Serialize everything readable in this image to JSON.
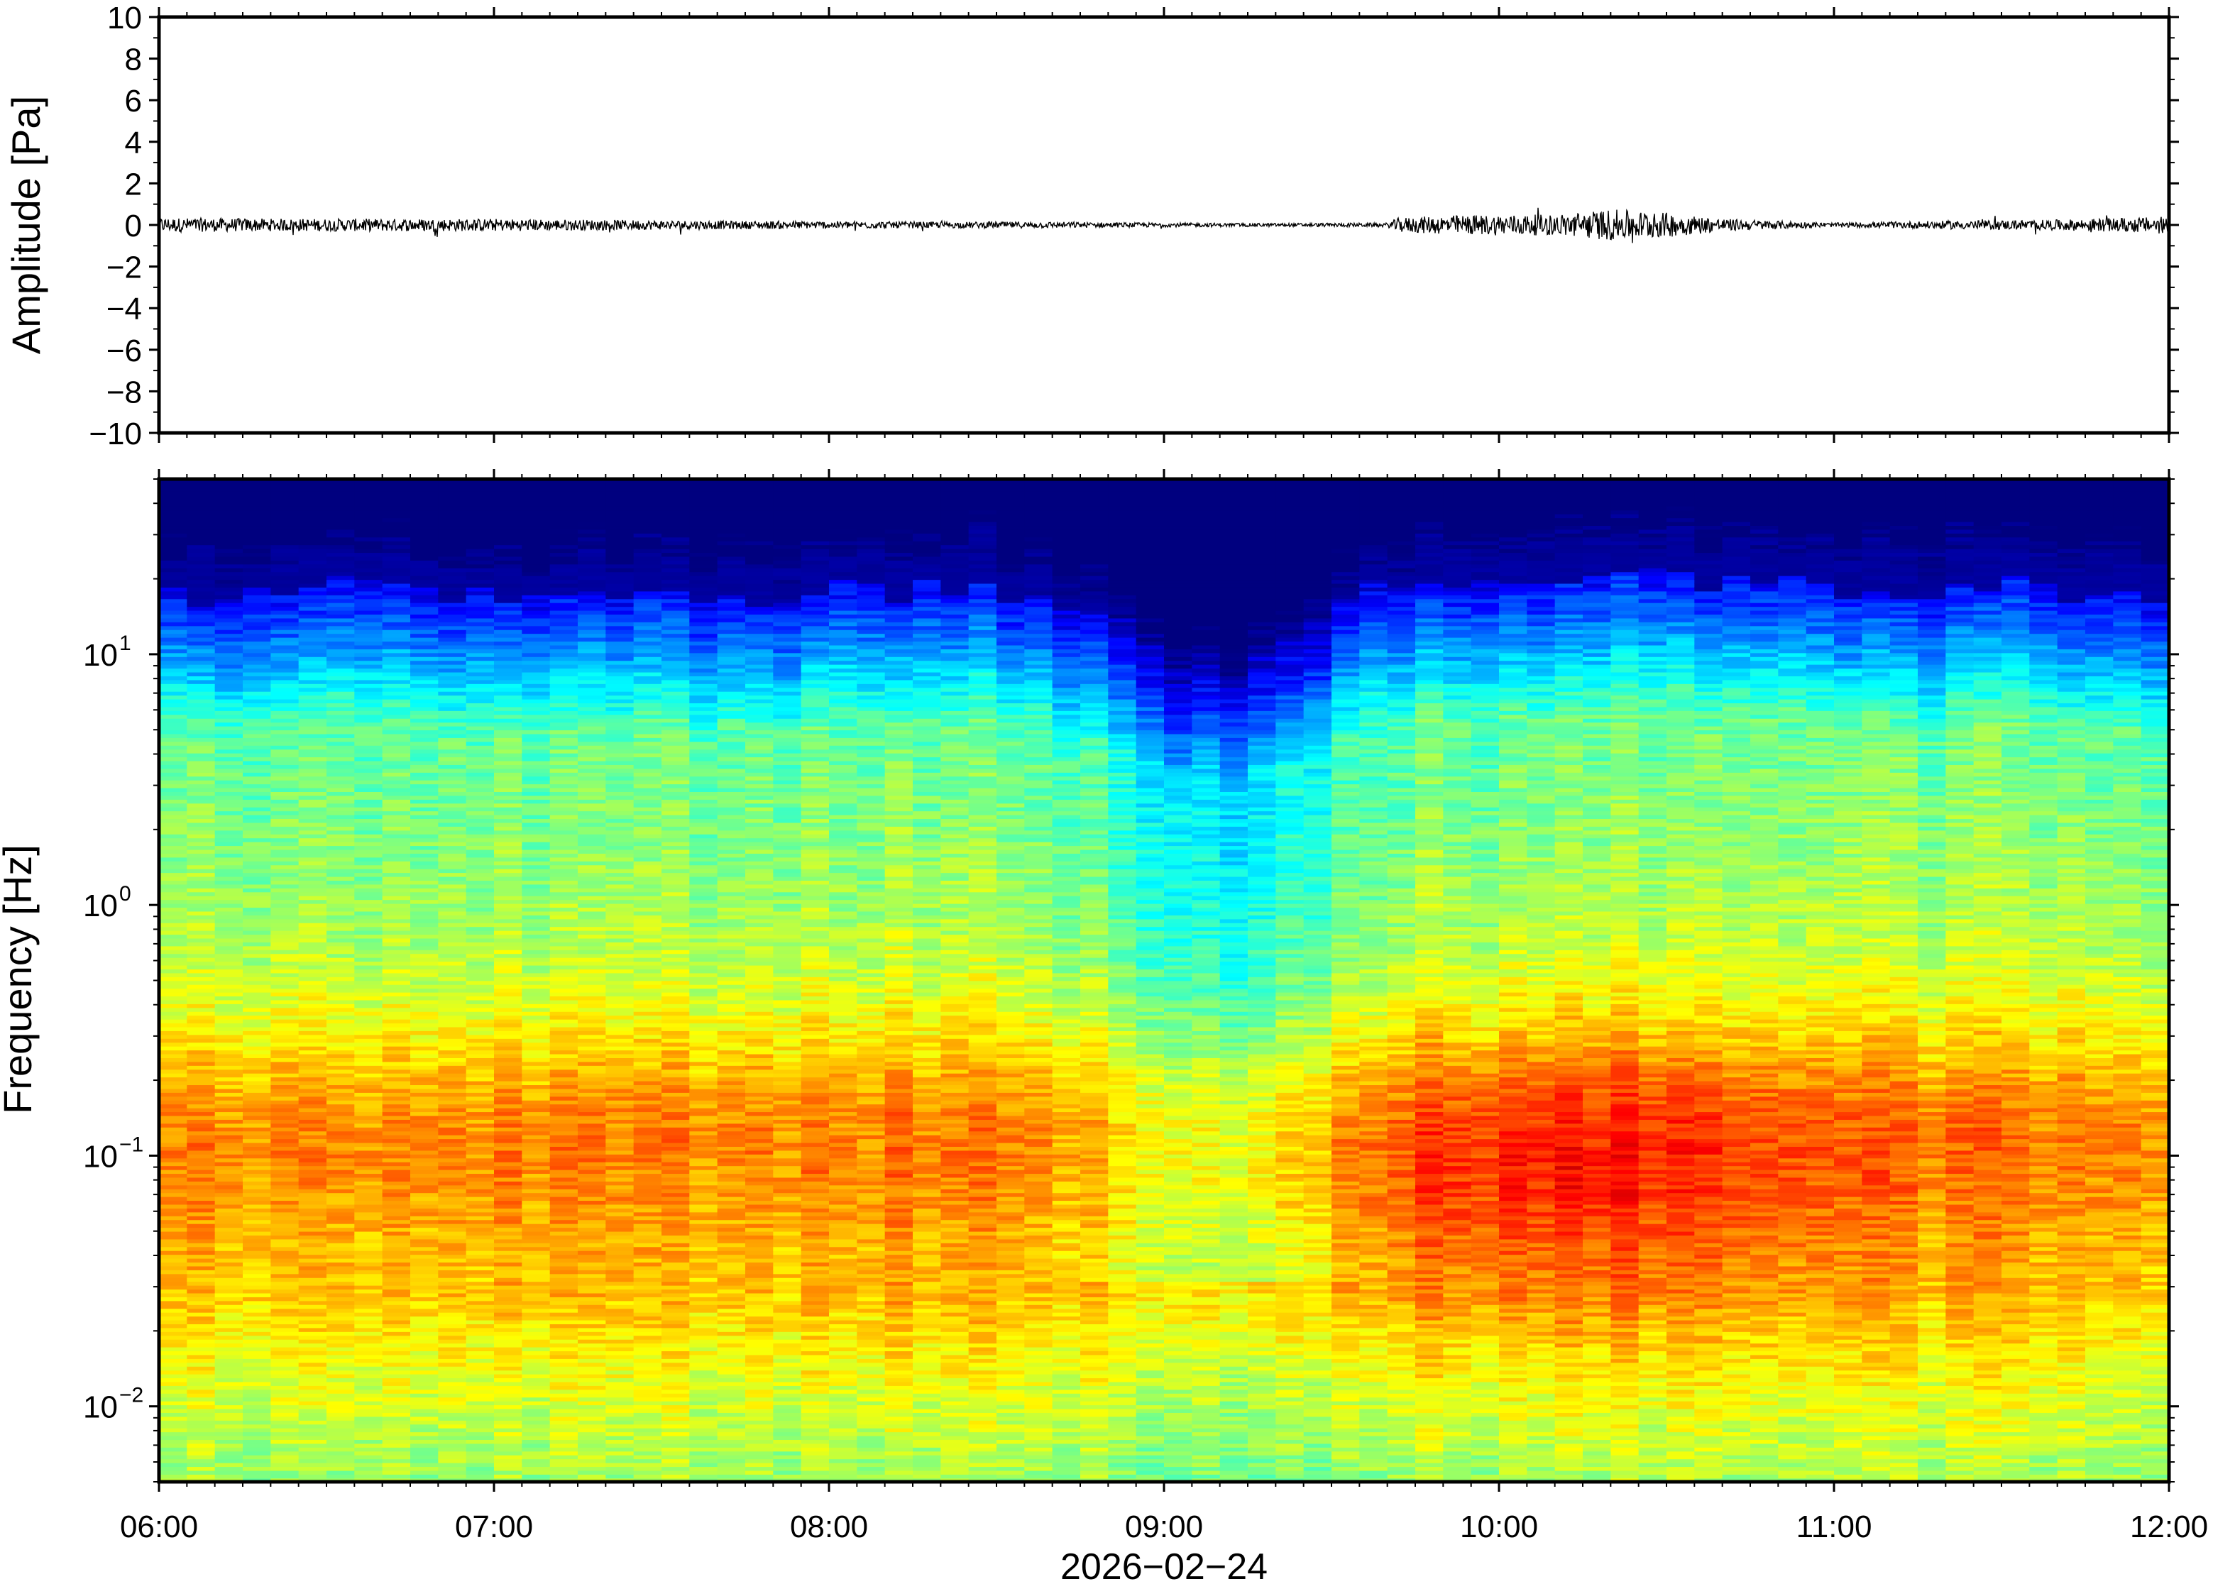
{
  "chart_data": [
    {
      "type": "line",
      "ylabel": "Amplitude [Pa]",
      "ylim": [
        -10,
        10
      ],
      "y_ticks": [
        "10",
        "8",
        "6",
        "4",
        "2",
        "0",
        "−2",
        "−4",
        "−6",
        "−8",
        "−10"
      ],
      "y_tick_values": [
        10,
        8,
        6,
        4,
        2,
        0,
        -2,
        -4,
        -6,
        -8,
        -10
      ],
      "x_range": [
        "06:00",
        "12:00"
      ],
      "grid": false,
      "series": [
        {
          "color": "#000000",
          "envelope": {
            "x_minutes": [
              0,
              20,
              40,
              60,
              80,
              100,
              120,
              140,
              160,
              180,
              200,
              220,
              222,
              230,
              240,
              250,
              260,
              270,
              280,
              290,
              300,
              320,
              340,
              360
            ],
            "amplitude": [
              0.35,
              0.3,
              0.3,
              0.3,
              0.25,
              0.2,
              0.18,
              0.15,
              0.15,
              0.1,
              0.08,
              0.1,
              0.35,
              0.45,
              0.5,
              0.5,
              0.75,
              0.6,
              0.3,
              0.2,
              0.1,
              0.2,
              0.25,
              0.4
            ]
          }
        }
      ]
    },
    {
      "type": "heatmap",
      "ylabel": "Frequency [Hz]",
      "y_scale": "log",
      "ylim": [
        0.005,
        50
      ],
      "y_ticks": [
        {
          "value": 10,
          "base": "10",
          "exp": "1"
        },
        {
          "value": 1,
          "base": "10",
          "exp": "0"
        },
        {
          "value": 0.1,
          "base": "10",
          "exp": "−1"
        },
        {
          "value": 0.01,
          "base": "10",
          "exp": "−2"
        }
      ],
      "x_ticks": [
        "06:00",
        "07:00",
        "08:00",
        "09:00",
        "10:00",
        "11:00",
        "12:00"
      ],
      "xlabel": "2026−02−24",
      "colormap": "jet",
      "colors": [
        "#00007f",
        "#0000ff",
        "#007fff",
        "#00ffff",
        "#7fff7f",
        "#ffff00",
        "#ff7f00",
        "#ff0000",
        "#7f0000"
      ],
      "time_columns": 72,
      "quiet_band": {
        "center_minutes": 190,
        "width_minutes": 22
      },
      "active_band": {
        "center_minutes": 252,
        "width_minutes": 45
      }
    }
  ]
}
